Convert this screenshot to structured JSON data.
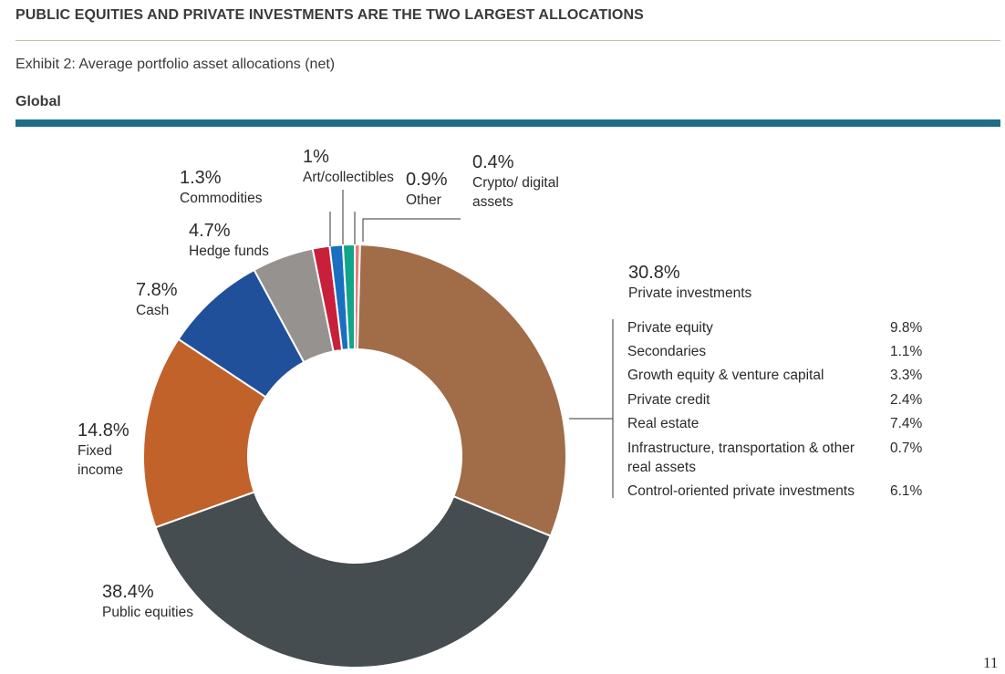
{
  "header": {
    "title": "PUBLIC EQUITIES AND PRIVATE INVESTMENTS ARE THE TWO LARGEST ALLOCATIONS",
    "subtitle": "Exhibit 2: Average portfolio asset allocations (net)",
    "region": "Global"
  },
  "chart_data": {
    "type": "pie",
    "variant": "donut",
    "title": "Average portfolio asset allocations (net)",
    "subtitle": "Global",
    "slices": [
      {
        "label": "Crypto/ digital assets",
        "value": 0.4,
        "display": "0.4%",
        "color": "#e87e7c"
      },
      {
        "label": "Private investments",
        "value": 30.8,
        "display": "30.8%",
        "color": "#a16c48"
      },
      {
        "label": "Public equities",
        "value": 38.4,
        "display": "38.4%",
        "color": "#454d50"
      },
      {
        "label": "Fixed income",
        "value": 14.8,
        "display": "14.8%",
        "color": "#c2622b"
      },
      {
        "label": "Cash",
        "value": 7.8,
        "display": "7.8%",
        "color": "#21509a"
      },
      {
        "label": "Hedge funds",
        "value": 4.7,
        "display": "4.7%",
        "color": "#959290"
      },
      {
        "label": "Commodities",
        "value": 1.3,
        "display": "1.3%",
        "color": "#c8203a"
      },
      {
        "label": "Art/collectibles",
        "value": 1.0,
        "display": "1%",
        "color": "#1a6fc0"
      },
      {
        "label": "Other",
        "value": 0.9,
        "display": "0.9%",
        "color": "#12a58a"
      }
    ],
    "breakdown": {
      "parent": "Private investments",
      "items": [
        {
          "label": "Private equity",
          "value": 9.8,
          "display": "9.8%"
        },
        {
          "label": "Secondaries",
          "value": 1.1,
          "display": "1.1%"
        },
        {
          "label": "Growth equity & venture capital",
          "value": 3.3,
          "display": "3.3%"
        },
        {
          "label": "Private credit",
          "value": 2.4,
          "display": "2.4%"
        },
        {
          "label": "Real estate",
          "value": 7.4,
          "display": "7.4%"
        },
        {
          "label": "Infrastructure, transportation & other real assets",
          "value": 0.7,
          "display": "0.7%"
        },
        {
          "label": "Control-oriented private investments",
          "value": 6.1,
          "display": "6.1%"
        }
      ]
    }
  },
  "page_number": "11"
}
